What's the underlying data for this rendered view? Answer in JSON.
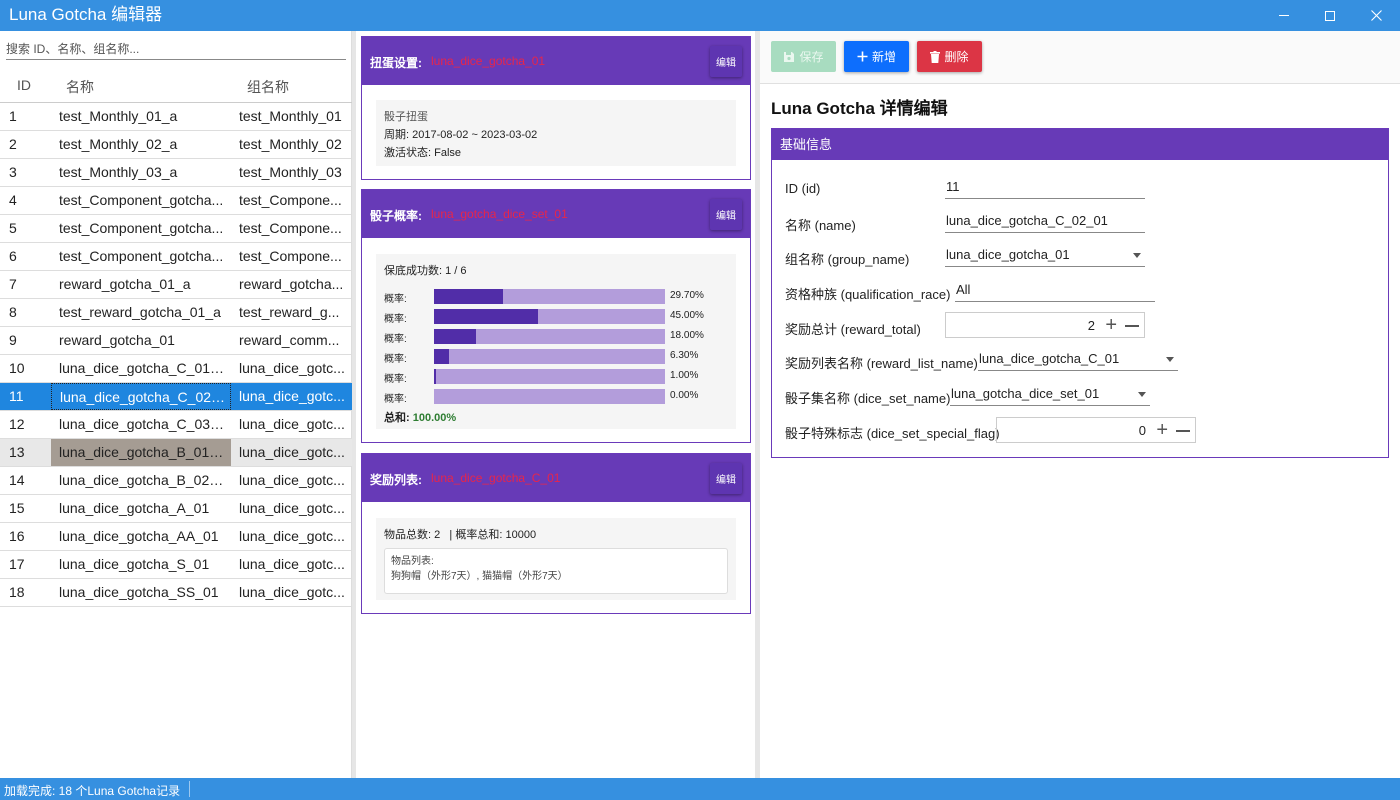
{
  "window": {
    "title": "Luna Gotcha 编辑器",
    "controls": [
      "minimize-icon",
      "maximize-icon",
      "close-icon"
    ]
  },
  "left": {
    "search_placeholder": "搜索 ID、名称、组名称...",
    "columns": {
      "id": "ID",
      "name": "名称",
      "group": "组名称"
    },
    "rows": [
      {
        "id": "1",
        "name": "test_Monthly_01_a",
        "group": "test_Monthly_01"
      },
      {
        "id": "2",
        "name": "test_Monthly_02_a",
        "group": "test_Monthly_02"
      },
      {
        "id": "3",
        "name": "test_Monthly_03_a",
        "group": "test_Monthly_03"
      },
      {
        "id": "4",
        "name": "test_Component_gotcha...",
        "group": "test_Compone..."
      },
      {
        "id": "5",
        "name": "test_Component_gotcha...",
        "group": "test_Compone..."
      },
      {
        "id": "6",
        "name": "test_Component_gotcha...",
        "group": "test_Compone..."
      },
      {
        "id": "7",
        "name": "reward_gotcha_01_a",
        "group": "reward_gotcha..."
      },
      {
        "id": "8",
        "name": "test_reward_gotcha_01_a",
        "group": "test_reward_g..."
      },
      {
        "id": "9",
        "name": "reward_gotcha_01",
        "group": "reward_comm..."
      },
      {
        "id": "10",
        "name": "luna_dice_gotcha_C_01_01",
        "group": "luna_dice_gotc..."
      },
      {
        "id": "11",
        "name": "luna_dice_gotcha_C_02_01",
        "group": "luna_dice_gotc..."
      },
      {
        "id": "12",
        "name": "luna_dice_gotcha_C_03_01",
        "group": "luna_dice_gotc..."
      },
      {
        "id": "13",
        "name": "luna_dice_gotcha_B_01_01",
        "group": "luna_dice_gotc..."
      },
      {
        "id": "14",
        "name": "luna_dice_gotcha_B_02_01",
        "group": "luna_dice_gotc..."
      },
      {
        "id": "15",
        "name": "luna_dice_gotcha_A_01",
        "group": "luna_dice_gotc..."
      },
      {
        "id": "16",
        "name": "luna_dice_gotcha_AA_01",
        "group": "luna_dice_gotc..."
      },
      {
        "id": "17",
        "name": "luna_dice_gotcha_S_01",
        "group": "luna_dice_gotc..."
      },
      {
        "id": "18",
        "name": "luna_dice_gotcha_SS_01",
        "group": "luna_dice_gotc..."
      }
    ],
    "selected_id": "11",
    "hover_id": "13"
  },
  "middle": {
    "gacha": {
      "label": "扭蛋设置:",
      "value": "luna_dice_gotcha_01",
      "edit": "编辑",
      "type": "骰子扭蛋",
      "period_label": "周期:",
      "period_start": "2017-08-02",
      "period_sep": "~",
      "period_end": "2023-03-02",
      "active_label": "激活状态:",
      "active_value": "False"
    },
    "dice": {
      "label": "骰子概率:",
      "value": "luna_gotcha_dice_set_01",
      "edit": "编辑",
      "guarantee_label": "保底成功数:",
      "guarantee_value": "1 / 6",
      "prob_label": "概率:",
      "probs": [
        {
          "text": "29.70%",
          "value": 29.7
        },
        {
          "text": "45.00%",
          "value": 45.0
        },
        {
          "text": "18.00%",
          "value": 18.0
        },
        {
          "text": "6.30%",
          "value": 6.3
        },
        {
          "text": "1.00%",
          "value": 1.0
        },
        {
          "text": "0.00%",
          "value": 0.0
        }
      ],
      "total_label": "总和:",
      "total_value": "100.00%"
    },
    "reward": {
      "label": "奖励列表:",
      "value": "luna_dice_gotcha_C_01",
      "edit": "编辑",
      "count_label": "物品总数:",
      "count_value": "2",
      "sum_label": "| 概率总和:",
      "sum_value": "10000",
      "items_label": "物品列表:",
      "items_value": "狗狗帽（外形7天）, 猫猫帽（外形7天）"
    }
  },
  "right": {
    "toolbar": {
      "save": "保存",
      "add": "新增",
      "delete": "删除"
    },
    "title": "Luna Gotcha 详情编辑",
    "section": "基础信息",
    "fields": {
      "id": {
        "label": "ID (id)",
        "value": "11"
      },
      "name": {
        "label": "名称 (name)",
        "value": "luna_dice_gotcha_C_02_01"
      },
      "group_name": {
        "label": "组名称 (group_name)",
        "value": "luna_dice_gotcha_01"
      },
      "qualification_race": {
        "label": "资格种族 (qualification_race)",
        "value": "All"
      },
      "reward_total": {
        "label": "奖励总计 (reward_total)",
        "value": "2"
      },
      "reward_list_name": {
        "label": "奖励列表名称 (reward_list_name)",
        "value": "luna_dice_gotcha_C_01"
      },
      "dice_set_name": {
        "label": "骰子集名称 (dice_set_name)",
        "value": "luna_gotcha_dice_set_01"
      },
      "dice_set_special_flag": {
        "label": "骰子特殊标志 (dice_set_special_flag)",
        "value": "0"
      }
    }
  },
  "status": {
    "text": "加载完成: 18 个Luna Gotcha记录"
  },
  "colors": {
    "titlebar": "#3690e0",
    "accent": "#673ab7",
    "selected_row": "#1f86df",
    "value_red": "#e8254a",
    "total_green": "#2e7d32",
    "add_button": "#0d6efd",
    "delete_button": "#dc3545",
    "save_button_disabled": "#a8dcc0"
  }
}
